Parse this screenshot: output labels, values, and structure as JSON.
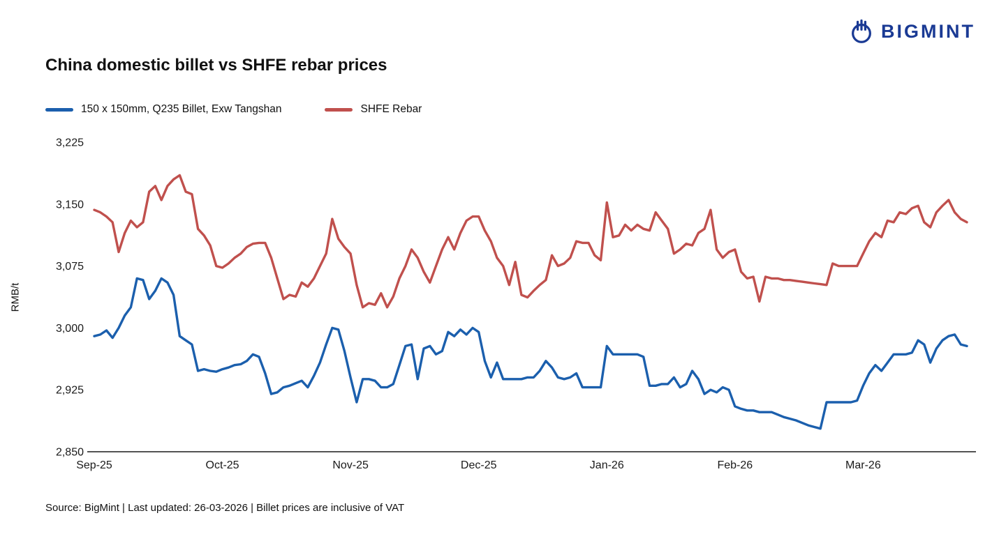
{
  "logo": {
    "text": "BIGMINT"
  },
  "title": "China domestic billet vs SHFE rebar prices",
  "y_axis_title": "RMB/t",
  "footer": "Source: BigMint | Last updated: 26-03-2026 | Billet prices are inclusive of VAT",
  "chart_data": {
    "type": "line",
    "title": "China domestic billet vs SHFE rebar prices",
    "xlabel": "",
    "ylabel": "RMB/t",
    "ylim": [
      2850,
      3225
    ],
    "y_ticks": [
      2850,
      2925,
      3000,
      3075,
      3150,
      3225
    ],
    "x_tick_labels": [
      "Sep-25",
      "Oct-25",
      "Nov-25",
      "Dec-25",
      "Jan-26",
      "Feb-26",
      "Mar-26"
    ],
    "x_tick_indices": [
      0,
      21,
      42,
      63,
      84,
      105,
      126
    ],
    "grid": false,
    "legend_position": "top",
    "series": [
      {
        "name": "150 x 150mm, Q235 Billet, Exw Tangshan",
        "color": "#1b5fad",
        "values": [
          2990,
          2992,
          2997,
          2988,
          3000,
          3015,
          3025,
          3060,
          3058,
          3035,
          3045,
          3060,
          3055,
          3040,
          2990,
          2985,
          2980,
          2948,
          2950,
          2948,
          2947,
          2950,
          2952,
          2955,
          2956,
          2960,
          2968,
          2965,
          2945,
          2920,
          2922,
          2928,
          2930,
          2933,
          2936,
          2928,
          2942,
          2958,
          2980,
          3000,
          2998,
          2972,
          2940,
          2910,
          2938,
          2938,
          2936,
          2928,
          2928,
          2932,
          2955,
          2978,
          2980,
          2938,
          2975,
          2978,
          2968,
          2972,
          2995,
          2990,
          2998,
          2992,
          3000,
          2995,
          2960,
          2940,
          2958,
          2938,
          2938,
          2938,
          2938,
          2940,
          2940,
          2948,
          2960,
          2952,
          2940,
          2938,
          2940,
          2945,
          2928,
          2928,
          2928,
          2928,
          2978,
          2968,
          2968,
          2968,
          2968,
          2968,
          2965,
          2930,
          2930,
          2932,
          2932,
          2940,
          2928,
          2932,
          2948,
          2938,
          2920,
          2925,
          2922,
          2928,
          2925,
          2905,
          2902,
          2900,
          2900,
          2898,
          2898,
          2898,
          2895,
          2892,
          2890,
          2888,
          2885,
          2882,
          2880,
          2878,
          2910,
          2910,
          2910,
          2910,
          2910,
          2912,
          2930,
          2945,
          2955,
          2948,
          2958,
          2968,
          2968,
          2968,
          2970,
          2985,
          2980,
          2958,
          2975,
          2985,
          2990,
          2992,
          2980,
          2978
        ]
      },
      {
        "name": "SHFE Rebar",
        "color": "#c0504d",
        "values": [
          3143,
          3140,
          3135,
          3128,
          3092,
          3115,
          3130,
          3122,
          3128,
          3165,
          3172,
          3155,
          3172,
          3180,
          3185,
          3165,
          3162,
          3120,
          3112,
          3100,
          3075,
          3073,
          3078,
          3085,
          3090,
          3098,
          3102,
          3103,
          3103,
          3085,
          3060,
          3035,
          3040,
          3038,
          3055,
          3050,
          3060,
          3075,
          3090,
          3132,
          3108,
          3098,
          3090,
          3052,
          3025,
          3030,
          3028,
          3042,
          3025,
          3038,
          3060,
          3075,
          3095,
          3085,
          3068,
          3055,
          3075,
          3095,
          3110,
          3095,
          3115,
          3130,
          3135,
          3135,
          3118,
          3105,
          3085,
          3075,
          3052,
          3080,
          3040,
          3037,
          3045,
          3052,
          3058,
          3088,
          3075,
          3078,
          3085,
          3105,
          3103,
          3103,
          3088,
          3082,
          3152,
          3110,
          3112,
          3125,
          3118,
          3125,
          3120,
          3118,
          3140,
          3130,
          3120,
          3090,
          3095,
          3102,
          3100,
          3115,
          3120,
          3143,
          3095,
          3085,
          3092,
          3095,
          3068,
          3060,
          3062,
          3032,
          3062,
          3060,
          3060,
          3058,
          3058,
          3057,
          3056,
          3055,
          3054,
          3053,
          3052,
          3078,
          3075,
          3075,
          3075,
          3075,
          3090,
          3105,
          3115,
          3110,
          3130,
          3128,
          3140,
          3138,
          3145,
          3148,
          3128,
          3122,
          3140,
          3148,
          3155,
          3140,
          3132,
          3128
        ]
      }
    ]
  }
}
